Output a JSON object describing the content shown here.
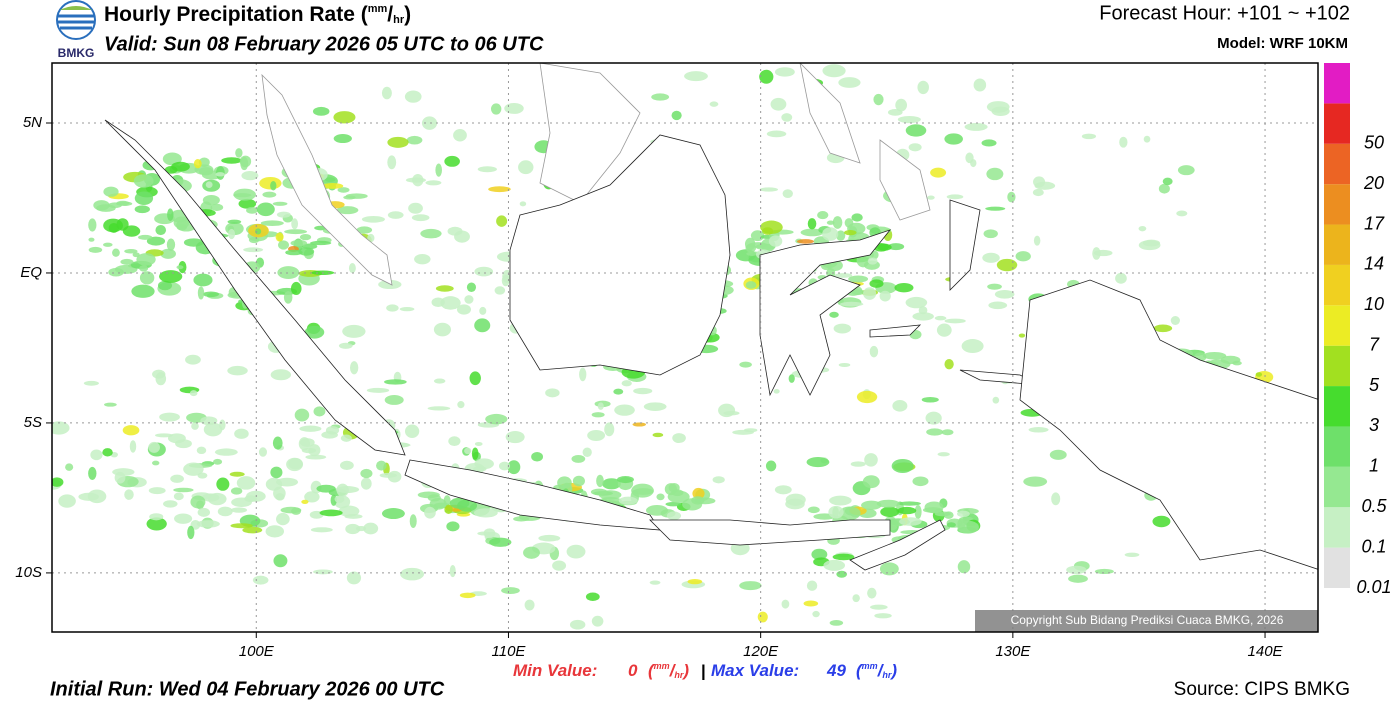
{
  "header": {
    "logo": "BMKG",
    "title": "Hourly Precipitation Rate ",
    "unit": {
      "open": "(",
      "num": "mm",
      "sep": "/",
      "den": "hr",
      "close": ")"
    },
    "valid": "Valid: Sun 08 February 2026 05 UTC to 06 UTC",
    "forecast_hour": "Forecast Hour: +101 ~ +102",
    "model": "Model: WRF 10KM"
  },
  "map": {
    "xlim": [
      91.9,
      142.1
    ],
    "ylim": [
      -11.97,
      7
    ],
    "lon_ticks": [
      {
        "value": 100,
        "label": "100E"
      },
      {
        "value": 110,
        "label": "110E"
      },
      {
        "value": 120,
        "label": "120E"
      },
      {
        "value": 130,
        "label": "130E"
      },
      {
        "value": 140,
        "label": "140E"
      }
    ],
    "lat_ticks": [
      {
        "value": 5,
        "label": "5N"
      },
      {
        "value": 0,
        "label": "EQ"
      },
      {
        "value": -5,
        "label": "5S"
      },
      {
        "value": -10,
        "label": "10S"
      }
    ],
    "copyright": "Copyright Sub Bidang Prediksi Cuaca BMKG, 2026"
  },
  "colorbar": {
    "levels": [
      0.01,
      0.1,
      0.5,
      1,
      3,
      5,
      7,
      10,
      14,
      17,
      20,
      50
    ],
    "colors": [
      "#e1e1e1",
      "#c6f0c4",
      "#95e891",
      "#6ee06a",
      "#46dc2e",
      "#a2e020",
      "#ecec24",
      "#f0d020",
      "#ecb41c",
      "#ec8e20",
      "#ec6424",
      "#e62822",
      "#e21cc4"
    ]
  },
  "stats": {
    "min_label": "Min Value:",
    "min_value": 0,
    "divider": "|",
    "max_label": "Max Value:",
    "max_value": 49
  },
  "footer": {
    "initial_run": "Initial Run: Wed 04 February 2026 00 UTC",
    "source": "Source: CIPS BMKG"
  }
}
